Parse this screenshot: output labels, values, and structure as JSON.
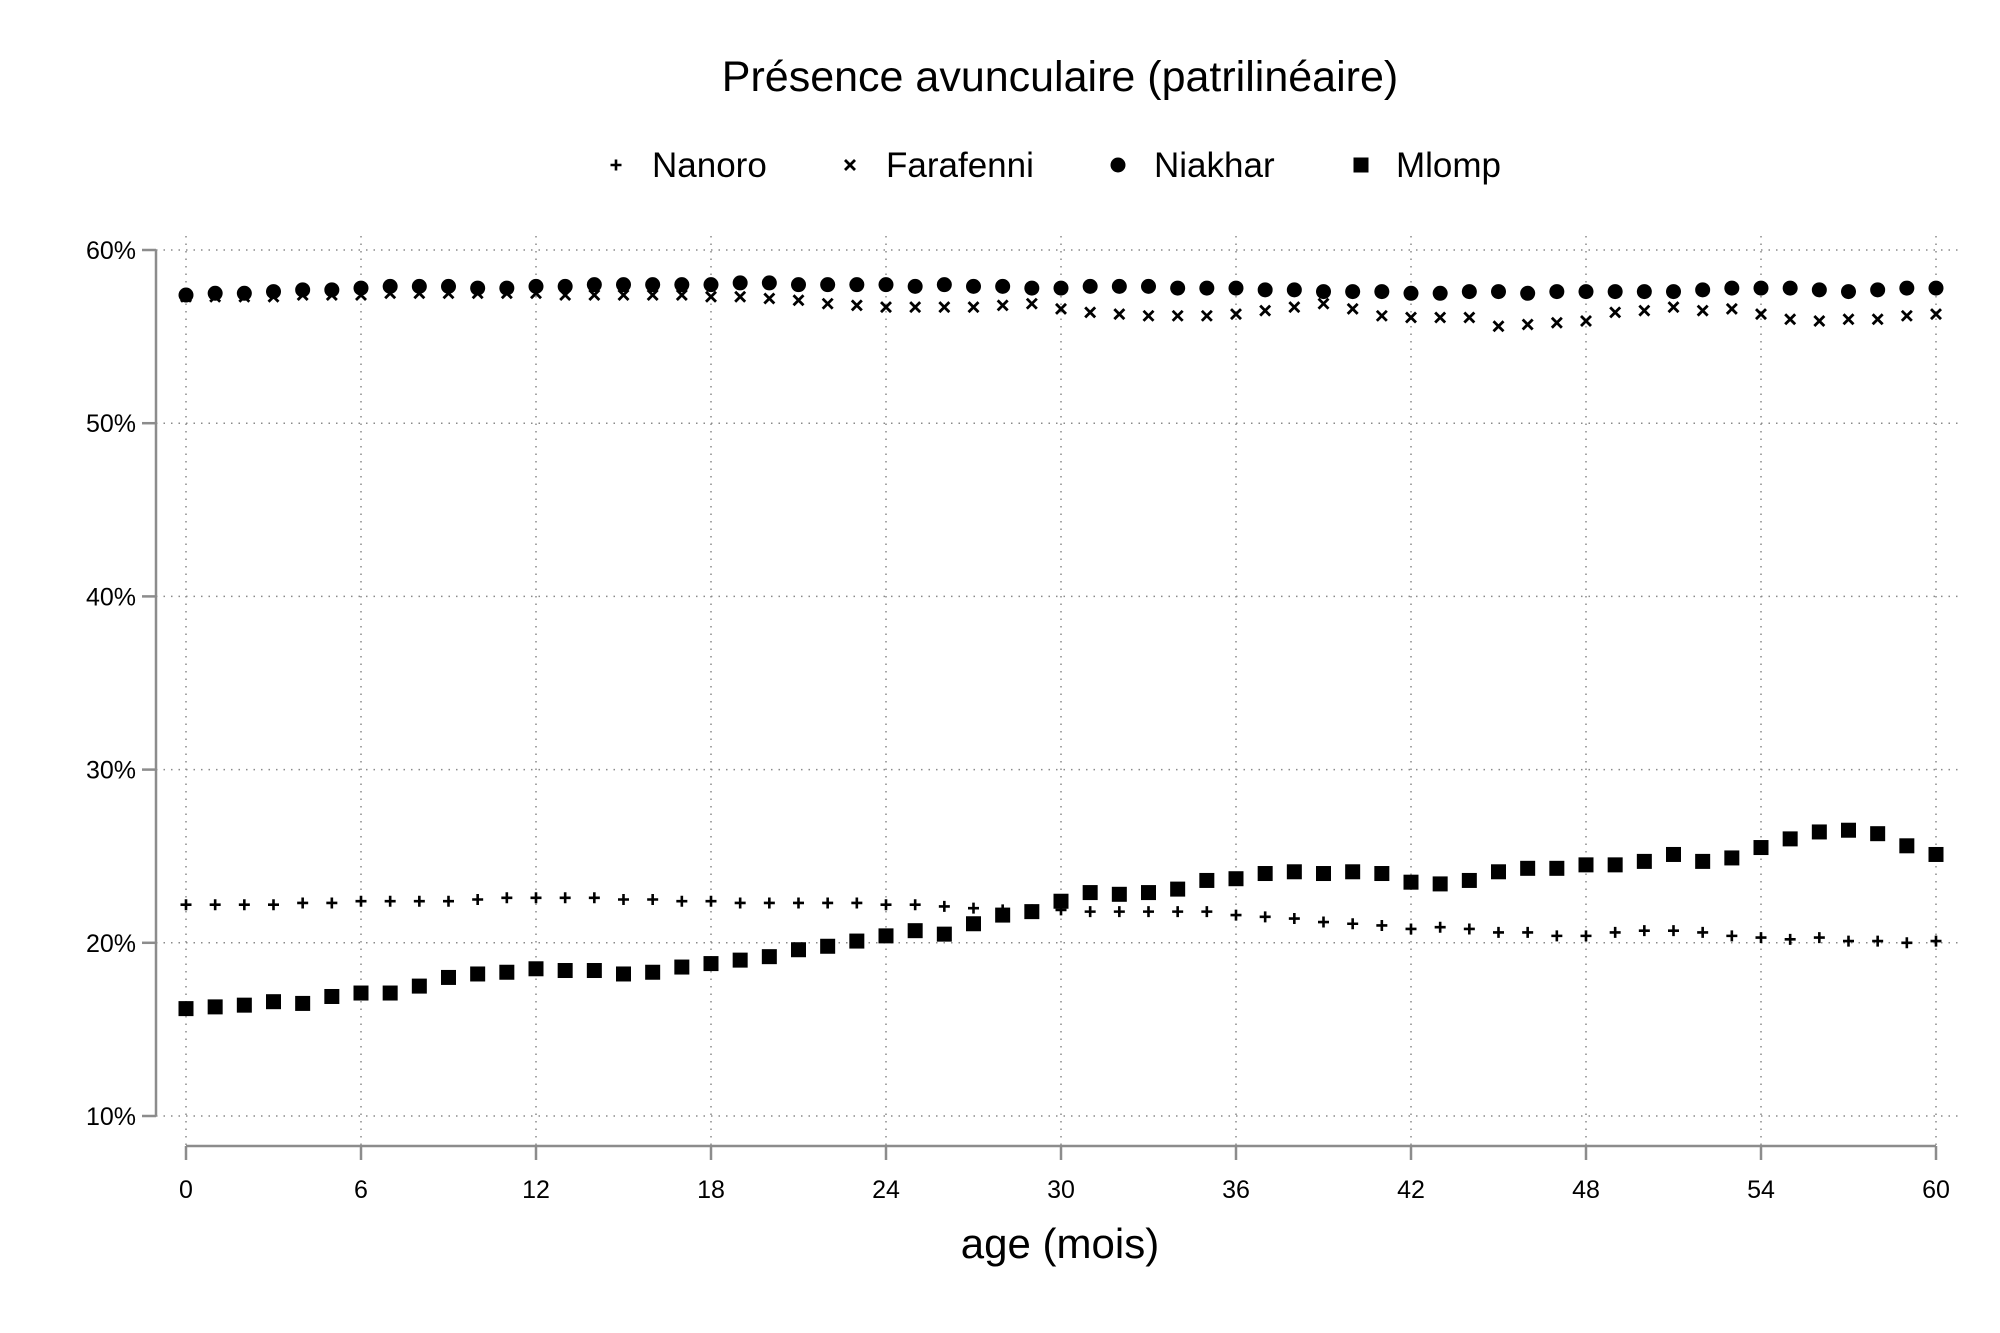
{
  "chart_data": {
    "type": "scatter",
    "title": "Présence avunculaire (patrilinéaire)",
    "xlabel": "age (mois)",
    "ylabel": "",
    "xlim": [
      0,
      60
    ],
    "ylim": [
      10,
      60
    ],
    "x_ticks": [
      0,
      6,
      12,
      18,
      24,
      30,
      36,
      42,
      48,
      54,
      60
    ],
    "y_ticks": [
      10,
      20,
      30,
      40,
      50,
      60
    ],
    "y_tick_labels": [
      "10%",
      "20%",
      "30%",
      "40%",
      "50%",
      "60%"
    ],
    "grid": true,
    "legend_position": "top",
    "x": [
      0,
      1,
      2,
      3,
      4,
      5,
      6,
      7,
      8,
      9,
      10,
      11,
      12,
      13,
      14,
      15,
      16,
      17,
      18,
      19,
      20,
      21,
      22,
      23,
      24,
      25,
      26,
      27,
      28,
      29,
      30,
      31,
      32,
      33,
      34,
      35,
      36,
      37,
      38,
      39,
      40,
      41,
      42,
      43,
      44,
      45,
      46,
      47,
      48,
      49,
      50,
      51,
      52,
      53,
      54,
      55,
      56,
      57,
      58,
      59,
      60
    ],
    "series": [
      {
        "name": "Nanoro",
        "marker": "plus",
        "values": [
          22.2,
          22.2,
          22.2,
          22.2,
          22.3,
          22.3,
          22.4,
          22.4,
          22.4,
          22.4,
          22.5,
          22.6,
          22.6,
          22.6,
          22.6,
          22.5,
          22.5,
          22.4,
          22.4,
          22.3,
          22.3,
          22.3,
          22.3,
          22.3,
          22.2,
          22.2,
          22.1,
          22.0,
          21.9,
          21.9,
          21.9,
          21.8,
          21.8,
          21.8,
          21.8,
          21.8,
          21.6,
          21.5,
          21.4,
          21.2,
          21.1,
          21.0,
          20.8,
          20.9,
          20.8,
          20.6,
          20.6,
          20.4,
          20.4,
          20.6,
          20.7,
          20.7,
          20.6,
          20.4,
          20.3,
          20.2,
          20.3,
          20.1,
          20.1,
          20.0,
          20.1
        ]
      },
      {
        "name": "Farafenni",
        "marker": "cross",
        "values": [
          57.3,
          57.3,
          57.3,
          57.3,
          57.4,
          57.4,
          57.4,
          57.5,
          57.5,
          57.5,
          57.5,
          57.5,
          57.5,
          57.4,
          57.4,
          57.4,
          57.4,
          57.4,
          57.3,
          57.3,
          57.2,
          57.1,
          56.9,
          56.8,
          56.7,
          56.7,
          56.7,
          56.7,
          56.8,
          56.9,
          56.6,
          56.4,
          56.3,
          56.2,
          56.2,
          56.2,
          56.3,
          56.5,
          56.7,
          56.9,
          56.6,
          56.2,
          56.1,
          56.1,
          56.1,
          55.6,
          55.7,
          55.8,
          55.9,
          56.4,
          56.5,
          56.7,
          56.5,
          56.6,
          56.3,
          56.0,
          55.9,
          56.0,
          56.0,
          56.2,
          56.3
        ]
      },
      {
        "name": "Niakhar",
        "marker": "circle",
        "values": [
          57.4,
          57.5,
          57.5,
          57.6,
          57.7,
          57.7,
          57.8,
          57.9,
          57.9,
          57.9,
          57.8,
          57.8,
          57.9,
          57.9,
          58.0,
          58.0,
          58.0,
          58.0,
          58.0,
          58.1,
          58.1,
          58.0,
          58.0,
          58.0,
          58.0,
          57.9,
          58.0,
          57.9,
          57.9,
          57.8,
          57.8,
          57.9,
          57.9,
          57.9,
          57.8,
          57.8,
          57.8,
          57.7,
          57.7,
          57.6,
          57.6,
          57.6,
          57.5,
          57.5,
          57.6,
          57.6,
          57.5,
          57.6,
          57.6,
          57.6,
          57.6,
          57.6,
          57.7,
          57.8,
          57.8,
          57.8,
          57.7,
          57.6,
          57.7,
          57.8,
          57.8
        ]
      },
      {
        "name": "Mlomp",
        "marker": "square",
        "values": [
          16.2,
          16.3,
          16.4,
          16.6,
          16.5,
          16.9,
          17.1,
          17.1,
          17.5,
          18.0,
          18.2,
          18.3,
          18.5,
          18.4,
          18.4,
          18.2,
          18.3,
          18.6,
          18.8,
          19.0,
          19.2,
          19.6,
          19.8,
          20.1,
          20.4,
          20.7,
          20.5,
          21.1,
          21.6,
          21.8,
          22.4,
          22.9,
          22.8,
          22.9,
          23.1,
          23.6,
          23.7,
          24.0,
          24.1,
          24.0,
          24.1,
          24.0,
          23.5,
          23.4,
          23.6,
          24.1,
          24.3,
          24.3,
          24.5,
          24.5,
          24.7,
          25.1,
          24.7,
          24.9,
          25.5,
          26.0,
          26.4,
          26.5,
          26.3,
          25.6,
          25.1
        ]
      }
    ]
  }
}
